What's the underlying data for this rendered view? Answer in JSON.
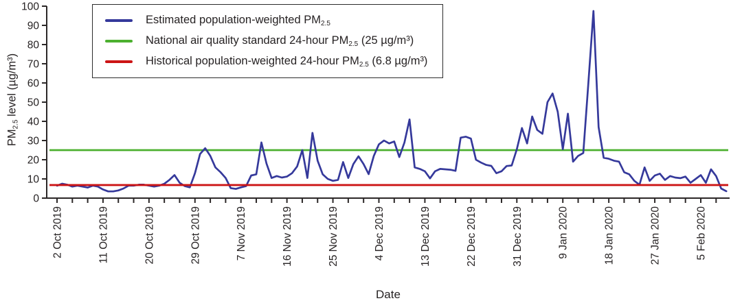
{
  "figure": {
    "xlabel": "Date",
    "ylabel_pre": "PM",
    "ylabel_sub": "2.5",
    "ylabel_post": " level (µg/m³)"
  },
  "legend": {
    "items": [
      {
        "id": "estimated",
        "color": "#35399b",
        "pre": "Estimated population-weighted PM",
        "sub": "2.5",
        "post": ""
      },
      {
        "id": "standard",
        "color": "#4cb02f",
        "pre": "National air quality standard 24-hour PM",
        "sub": "2.5",
        "post": " (25 µg/m³)"
      },
      {
        "id": "historical",
        "color": "#cc1415",
        "pre": "Historical population-weighted 24-hour PM",
        "sub": "2.5",
        "post": " (6.8 µg/m³)"
      }
    ]
  },
  "chart_data": {
    "type": "line",
    "title": "",
    "xlabel": "Date",
    "ylabel": "PM2.5 level (µg/m³)",
    "ylim": [
      0,
      100
    ],
    "grid": false,
    "legend_position": "top-left inside, boxed",
    "y_ticks": [
      0,
      10,
      20,
      30,
      40,
      50,
      60,
      70,
      80,
      90,
      100
    ],
    "x_start_date": "2 Oct 2019",
    "x_end_date": "10 Feb 2020",
    "minor_tick_every_days": 3,
    "x_ticks": [
      {
        "label": "2 Oct 2019",
        "day": 0
      },
      {
        "label": "11 Oct 2019",
        "day": 9
      },
      {
        "label": "20 Oct 2019",
        "day": 18
      },
      {
        "label": "29 Oct 2019",
        "day": 27
      },
      {
        "label": "7 Nov 2019",
        "day": 36
      },
      {
        "label": "16 Nov 2019",
        "day": 45
      },
      {
        "label": "25 Nov 2019",
        "day": 54
      },
      {
        "label": "4 Dec 2019",
        "day": 63
      },
      {
        "label": "13 Dec 2019",
        "day": 72
      },
      {
        "label": "22 Dec 2019",
        "day": 81
      },
      {
        "label": "31 Dec 2019",
        "day": 90
      },
      {
        "label": "9 Jan 2020",
        "day": 99
      },
      {
        "label": "18 Jan 2020",
        "day": 108
      },
      {
        "label": "27 Jan 2020",
        "day": 117
      },
      {
        "label": "5 Feb 2020",
        "day": 126
      }
    ],
    "reference_lines": [
      {
        "name": "National air quality standard 24-hour PM2.5",
        "value": 25,
        "color": "#4cb02f"
      },
      {
        "name": "Historical population-weighted 24-hour PM2.5",
        "value": 6.8,
        "color": "#cc1415"
      }
    ],
    "series": [
      {
        "name": "Estimated population-weighted PM2.5",
        "color": "#35399b",
        "sampling": "daily from 2 Oct 2019",
        "values": [
          6.5,
          7.5,
          7,
          6,
          6.5,
          6,
          5.5,
          6.5,
          6,
          4.5,
          3.5,
          3.5,
          4,
          5,
          6.5,
          6.5,
          7,
          7,
          6.5,
          6,
          6.5,
          7.5,
          9.5,
          12,
          8,
          6.3,
          5.6,
          13,
          23,
          26,
          22,
          16,
          13.5,
          10.5,
          5.2,
          4.8,
          5.6,
          6.3,
          11.8,
          12.4,
          29,
          18,
          10.5,
          11.5,
          10.7,
          11.2,
          13,
          16.5,
          25,
          10.5,
          34,
          19.5,
          12.4,
          10,
          9,
          9.5,
          18.8,
          10.5,
          17.7,
          21.8,
          17.7,
          12.5,
          22,
          28,
          30,
          28.5,
          29.5,
          21.4,
          29,
          41,
          16,
          15.2,
          14,
          10.3,
          14,
          15.2,
          15,
          14.8,
          14.2,
          31.5,
          32,
          31,
          20,
          18.5,
          17.3,
          16.8,
          13,
          14,
          16.7,
          17,
          25.5,
          36.5,
          28.5,
          42.5,
          35.5,
          33.5,
          50,
          54.5,
          45,
          25.5,
          44,
          19,
          22,
          23.5,
          60,
          97.5,
          37,
          21,
          20.5,
          19.5,
          19,
          13.5,
          12.4,
          9,
          7,
          16,
          9,
          11.8,
          12.7,
          9.5,
          11.5,
          10.7,
          10.4,
          11.2,
          8,
          10,
          12,
          8,
          15,
          11.5,
          5,
          3.6
        ]
      }
    ]
  }
}
